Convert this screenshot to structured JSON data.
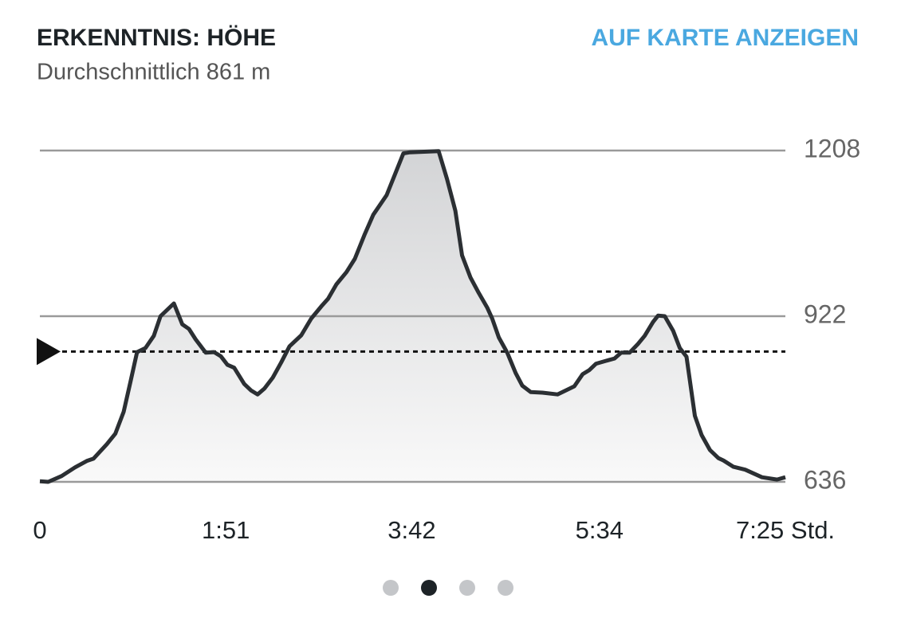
{
  "chart_data": {
    "type": "area",
    "title": "ERKENNTNIS: HÖHE",
    "subtitle": "Durchschnittlich 861 m",
    "link": "AUF KARTE ANZEIGEN",
    "x": [
      0,
      5,
      13,
      21,
      28,
      32,
      40,
      45,
      50,
      54,
      58,
      63,
      68,
      72,
      80,
      85,
      89,
      93,
      99,
      104,
      108,
      112,
      116,
      122,
      126,
      130,
      134,
      139,
      144,
      149,
      156,
      162,
      168,
      172,
      177,
      183,
      188,
      194,
      199,
      207,
      212,
      217,
      221,
      238,
      243,
      248,
      252,
      257,
      262,
      267,
      270,
      274,
      279,
      284,
      288,
      293,
      300,
      309,
      314,
      319,
      324,
      328,
      332,
      338,
      343,
      347,
      352,
      357,
      361,
      366,
      369,
      373,
      378,
      382,
      386,
      391,
      395,
      400,
      405,
      408,
      414,
      421,
      431,
      440,
      445
    ],
    "values": [
      637,
      636,
      646,
      661,
      672,
      676,
      701,
      719,
      757,
      808,
      860,
      867,
      888,
      922,
      944,
      908,
      900,
      882,
      859,
      860,
      853,
      838,
      833,
      805,
      794,
      787,
      797,
      816,
      842,
      870,
      889,
      918,
      939,
      952,
      977,
      998,
      1021,
      1064,
      1097,
      1131,
      1167,
      1203,
      1205,
      1207,
      1159,
      1104,
      1027,
      989,
      962,
      937,
      918,
      885,
      859,
      824,
      802,
      791,
      790,
      787,
      794,
      801,
      822,
      829,
      840,
      845,
      849,
      859,
      859,
      874,
      888,
      912,
      923,
      922,
      897,
      867,
      852,
      750,
      717,
      691,
      677,
      673,
      662,
      657,
      644,
      640,
      644
    ],
    "color": "#2b2f33",
    "average": 861,
    "xlim": [
      0,
      445
    ],
    "ylim": [
      636,
      1208
    ],
    "xticks": [
      0,
      {
        "value": 111,
        "label": "1:51"
      },
      {
        "value": 222,
        "label": "3:42"
      },
      {
        "value": 334,
        "label": "5:34"
      },
      {
        "value": 445,
        "label": "7:25 Std."
      }
    ],
    "yticks": [
      636,
      922,
      1208
    ],
    "grid": true
  }
}
